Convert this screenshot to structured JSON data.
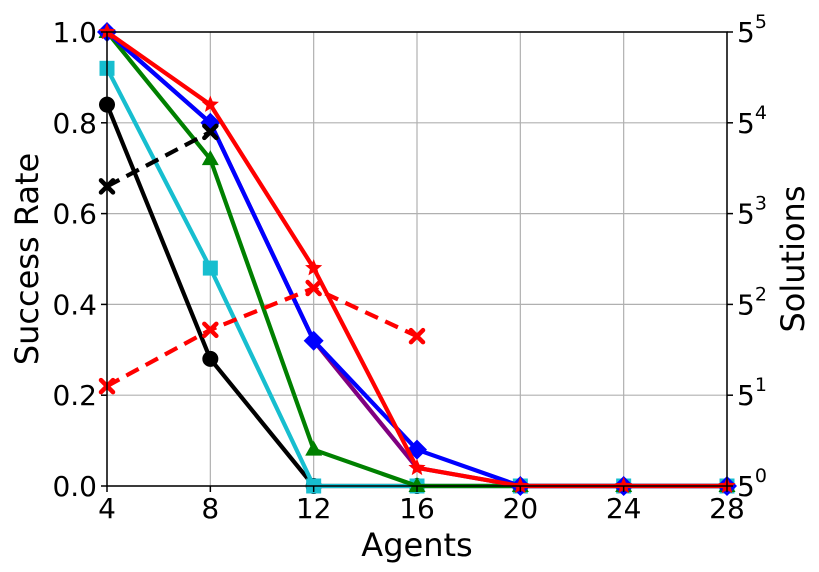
{
  "chart_data": {
    "type": "line",
    "xlabel": "Agents",
    "ylabel": "Success Rate",
    "y2label": "Solutions",
    "xlim": [
      4,
      28
    ],
    "ylim": [
      0,
      1
    ],
    "y2_scale": "log5",
    "y2lim_exponent": [
      0,
      5
    ],
    "grid": true,
    "x_ticks": [
      "4",
      "8",
      "12",
      "16",
      "20",
      "24",
      "28"
    ],
    "y_ticks": [
      "0.0",
      "0.2",
      "0.4",
      "0.6",
      "0.8",
      "1.0"
    ],
    "y2_ticks": [
      {
        "base": "5",
        "exp": "0"
      },
      {
        "base": "5",
        "exp": "1"
      },
      {
        "base": "5",
        "exp": "2"
      },
      {
        "base": "5",
        "exp": "3"
      },
      {
        "base": "5",
        "exp": "4"
      },
      {
        "base": "5",
        "exp": "5"
      }
    ],
    "series": [
      {
        "color": "#000000",
        "marker": "circle",
        "dash": false,
        "x": [
          4,
          8,
          12,
          16,
          20,
          24,
          28
        ],
        "y": [
          0.84,
          0.28,
          0.0,
          0.0,
          0.0,
          0.0,
          0.0
        ]
      },
      {
        "color": "#17becf",
        "marker": "square",
        "dash": false,
        "x": [
          4,
          8,
          12,
          16,
          20,
          24,
          28
        ],
        "y": [
          0.92,
          0.48,
          0.0,
          0.0,
          0.0,
          0.0,
          0.0
        ]
      },
      {
        "color": "#008000",
        "marker": "triangle",
        "dash": false,
        "x": [
          4,
          8,
          12,
          16,
          20,
          24,
          28
        ],
        "y": [
          1.0,
          0.72,
          0.08,
          0.0,
          0.0,
          0.0,
          0.0
        ]
      },
      {
        "color": "#800080",
        "marker": "none",
        "dash": false,
        "x": [
          4,
          8,
          12,
          16,
          20,
          24,
          28
        ],
        "y": [
          1.0,
          0.8,
          0.32,
          0.04,
          0.0,
          0.0,
          0.0
        ]
      },
      {
        "color": "#0000ff",
        "marker": "diamond",
        "dash": false,
        "x": [
          4,
          8,
          12,
          16,
          20,
          24,
          28
        ],
        "y": [
          1.0,
          0.8,
          0.32,
          0.08,
          0.0,
          0.0,
          0.0
        ]
      },
      {
        "color": "#ff0000",
        "marker": "star",
        "dash": false,
        "x": [
          4,
          8,
          12,
          16,
          20,
          24,
          28
        ],
        "y": [
          1.0,
          0.84,
          0.48,
          0.04,
          0.0,
          0.0,
          0.0
        ]
      },
      {
        "color": "#000000",
        "marker": "x",
        "dash": true,
        "axis": "right",
        "x": [
          4,
          8
        ],
        "y": [
          3.3,
          3.9
        ]
      },
      {
        "color": "#ff0000",
        "marker": "x",
        "dash": true,
        "axis": "right",
        "x": [
          4,
          8,
          12,
          16
        ],
        "y": [
          1.1,
          1.72,
          2.18,
          1.65
        ]
      }
    ]
  }
}
